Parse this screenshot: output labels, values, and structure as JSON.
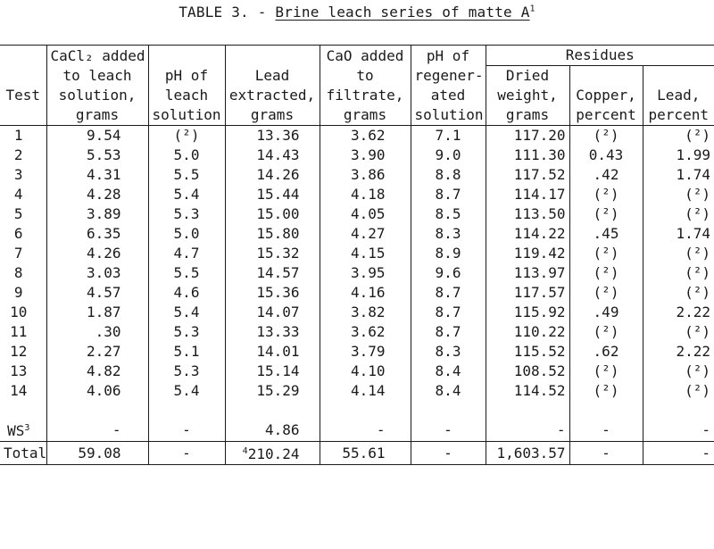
{
  "title": {
    "prefix": "TABLE 3. - ",
    "main": "Brine leach series of matte A",
    "footnote": "1"
  },
  "headers": {
    "test": [
      "",
      "",
      "Test",
      ""
    ],
    "cacl2": [
      "CaCl₂ added",
      "to leach",
      "solution,",
      "grams"
    ],
    "ph_leach": [
      "",
      "pH of",
      "leach",
      "solution"
    ],
    "lead_extracted": [
      "",
      "Lead",
      "extracted,",
      "grams"
    ],
    "cao": [
      "CaO added",
      "to",
      "filtrate,",
      "grams"
    ],
    "ph_regen": [
      "pH of",
      "regener-",
      "ated",
      "solution"
    ],
    "residues": "Residues",
    "dried_weight": [
      "Dried",
      "weight,",
      "grams"
    ],
    "copper": [
      "",
      "Copper,",
      "percent"
    ],
    "lead_pct": [
      "",
      "Lead,",
      "percent"
    ]
  },
  "rows": [
    {
      "test": "1",
      "cacl2": "9.54",
      "ph_leach": "(²)",
      "lead": "13.36",
      "cao": "3.62",
      "ph_regen": "7.1",
      "dried": "117.20",
      "copper": "(²)",
      "lead_pct": "(²)"
    },
    {
      "test": "2",
      "cacl2": "5.53",
      "ph_leach": "5.0",
      "lead": "14.43",
      "cao": "3.90",
      "ph_regen": "9.0",
      "dried": "111.30",
      "copper": "0.43",
      "lead_pct": "1.99"
    },
    {
      "test": "3",
      "cacl2": "4.31",
      "ph_leach": "5.5",
      "lead": "14.26",
      "cao": "3.86",
      "ph_regen": "8.8",
      "dried": "117.52",
      "copper": ".42",
      "lead_pct": "1.74"
    },
    {
      "test": "4",
      "cacl2": "4.28",
      "ph_leach": "5.4",
      "lead": "15.44",
      "cao": "4.18",
      "ph_regen": "8.7",
      "dried": "114.17",
      "copper": "(²)",
      "lead_pct": "(²)"
    },
    {
      "test": "5",
      "cacl2": "3.89",
      "ph_leach": "5.3",
      "lead": "15.00",
      "cao": "4.05",
      "ph_regen": "8.5",
      "dried": "113.50",
      "copper": "(²)",
      "lead_pct": "(²)"
    },
    {
      "test": "6",
      "cacl2": "6.35",
      "ph_leach": "5.0",
      "lead": "15.80",
      "cao": "4.27",
      "ph_regen": "8.3",
      "dried": "114.22",
      "copper": ".45",
      "lead_pct": "1.74"
    },
    {
      "test": "7",
      "cacl2": "4.26",
      "ph_leach": "4.7",
      "lead": "15.32",
      "cao": "4.15",
      "ph_regen": "8.9",
      "dried": "119.42",
      "copper": "(²)",
      "lead_pct": "(²)"
    },
    {
      "test": "8",
      "cacl2": "3.03",
      "ph_leach": "5.5",
      "lead": "14.57",
      "cao": "3.95",
      "ph_regen": "9.6",
      "dried": "113.97",
      "copper": "(²)",
      "lead_pct": "(²)"
    },
    {
      "test": "9",
      "cacl2": "4.57",
      "ph_leach": "4.6",
      "lead": "15.36",
      "cao": "4.16",
      "ph_regen": "8.7",
      "dried": "117.57",
      "copper": "(²)",
      "lead_pct": "(²)"
    },
    {
      "test": "10",
      "cacl2": "1.87",
      "ph_leach": "5.4",
      "lead": "14.07",
      "cao": "3.82",
      "ph_regen": "8.7",
      "dried": "115.92",
      "copper": ".49",
      "lead_pct": "2.22"
    },
    {
      "test": "11",
      "cacl2": ".30",
      "ph_leach": "5.3",
      "lead": "13.33",
      "cao": "3.62",
      "ph_regen": "8.7",
      "dried": "110.22",
      "copper": "(²)",
      "lead_pct": "(²)"
    },
    {
      "test": "12",
      "cacl2": "2.27",
      "ph_leach": "5.1",
      "lead": "14.01",
      "cao": "3.79",
      "ph_regen": "8.3",
      "dried": "115.52",
      "copper": ".62",
      "lead_pct": "2.22"
    },
    {
      "test": "13",
      "cacl2": "4.82",
      "ph_leach": "5.3",
      "lead": "15.14",
      "cao": "4.10",
      "ph_regen": "8.4",
      "dried": "108.52",
      "copper": "(²)",
      "lead_pct": "(²)"
    },
    {
      "test": "14",
      "cacl2": "4.06",
      "ph_leach": "5.4",
      "lead": "15.29",
      "cao": "4.14",
      "ph_regen": "8.4",
      "dried": "114.52",
      "copper": "(²)",
      "lead_pct": "(²)"
    }
  ],
  "ws_row": {
    "test": "WS",
    "test_sup": "3",
    "cacl2": "-",
    "ph_leach": "-",
    "lead": "4.86",
    "cao": "-",
    "ph_regen": "-",
    "dried": "-",
    "copper": "-",
    "lead_pct": "-"
  },
  "total_row": {
    "test": "Total",
    "cacl2": "59.08",
    "ph_leach": "-",
    "lead_sup": "4",
    "lead": "210.24",
    "cao": "55.61",
    "ph_regen": "-",
    "dried": "1,603.57",
    "copper": "-",
    "lead_pct": "-"
  }
}
